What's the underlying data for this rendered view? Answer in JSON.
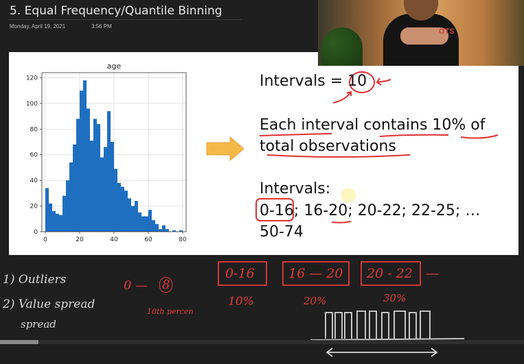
{
  "page": {
    "title": "5. Equal Frequency/Quantile Binning",
    "date": "Monday, April 19, 2021",
    "time": "3:56 PM"
  },
  "chart_data": {
    "type": "bar",
    "title": "age",
    "x": [
      0,
      2,
      4,
      6,
      8,
      10,
      12,
      14,
      16,
      18,
      20,
      22,
      24,
      26,
      28,
      30,
      32,
      34,
      36,
      38,
      40,
      42,
      44,
      46,
      48,
      50,
      52,
      54,
      56,
      58,
      60,
      62,
      64,
      66,
      68,
      70,
      72,
      74,
      76,
      78
    ],
    "values": [
      34,
      22,
      16,
      14,
      13,
      28,
      40,
      54,
      68,
      88,
      110,
      118,
      96,
      71,
      88,
      84,
      58,
      66,
      94,
      70,
      49,
      38,
      35,
      32,
      26,
      20,
      24,
      15,
      12,
      12,
      17,
      9,
      6,
      2,
      5,
      2,
      0,
      1,
      0,
      1
    ],
    "xticks": [
      "0",
      "20",
      "40",
      "60",
      "80"
    ],
    "yticks": [
      "0",
      "20",
      "40",
      "60",
      "80",
      "100",
      "120"
    ],
    "xlim": [
      -2,
      82
    ],
    "ylim": [
      0,
      124
    ],
    "grid": true,
    "bar_color": "#1f6fc1"
  },
  "slide": {
    "intervals_label": "Intervals = ",
    "intervals_value": "10",
    "each_line1": "Each interval contains 10% of",
    "each_line2": "total observations",
    "intervals_list_label": "Intervals:",
    "intervals_list_line1": "0-16; 16-20; 20-22; 22-25; …",
    "intervals_list_line2": "50-74"
  },
  "webcam": {
    "shirt_text": "OTS"
  },
  "board": {
    "item1": "1) Outliers",
    "item2": "2) Value spread",
    "item2b": "spread",
    "zero": "0 —",
    "eight": "8",
    "tenth": "10th percen",
    "box1": "0-16",
    "box2": "16 — 20",
    "box3": "20 - 22",
    "dash": "—",
    "pct1": "10%",
    "pct2": "20%",
    "pct3": "30%"
  }
}
